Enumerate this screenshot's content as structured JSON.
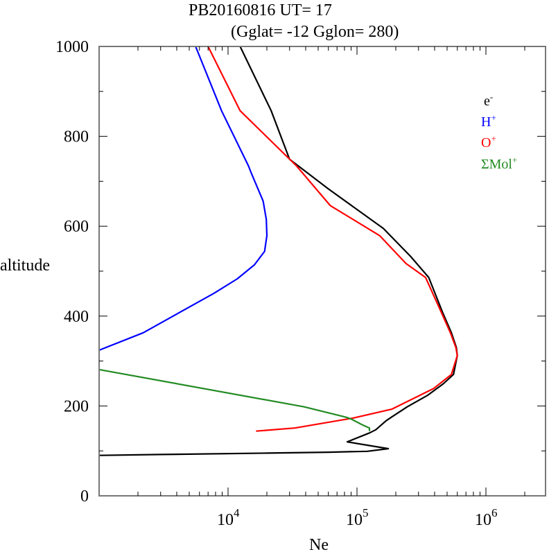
{
  "chart_data": {
    "type": "line",
    "title": "PB20160816   UT=  17",
    "subtitle": "(Gglat= -12   Gglon=  280)",
    "xlabel": "Ne",
    "ylabel": "altitude",
    "xscale": "log",
    "xlim": [
      1000,
      2900000
    ],
    "ylim": [
      0,
      1000
    ],
    "grid": false,
    "legend_placement": "top-right",
    "x_ticks": [
      {
        "value": 10000,
        "base": "10",
        "exp": "4"
      },
      {
        "value": 100000,
        "base": "10",
        "exp": "5"
      },
      {
        "value": 1000000,
        "base": "10",
        "exp": "6"
      }
    ],
    "y_ticks": [
      {
        "value": 0,
        "label": "0"
      },
      {
        "value": 200,
        "label": "200"
      },
      {
        "value": 400,
        "label": "400"
      },
      {
        "value": 600,
        "label": "600"
      },
      {
        "value": 800,
        "label": "800"
      },
      {
        "value": 1000,
        "label": "1000"
      }
    ],
    "series": [
      {
        "name": "e-",
        "legend_base": "e",
        "legend_sup": "-",
        "color": "#000000",
        "points": [
          [
            1000,
            90
          ],
          [
            3000,
            92
          ],
          [
            20000,
            95
          ],
          [
            60000,
            97
          ],
          [
            120000,
            99
          ],
          [
            175000,
            105
          ],
          [
            84000,
            120
          ],
          [
            125000,
            140
          ],
          [
            140000,
            147
          ],
          [
            168000,
            167
          ],
          [
            185000,
            175
          ],
          [
            245000,
            198
          ],
          [
            355000,
            224
          ],
          [
            470000,
            250
          ],
          [
            560000,
            270
          ],
          [
            600000,
            312
          ],
          [
            590000,
            330
          ],
          [
            540000,
            363
          ],
          [
            460000,
            409
          ],
          [
            360000,
            486
          ],
          [
            260000,
            533
          ],
          [
            160000,
            595
          ],
          [
            60000,
            683
          ],
          [
            30000,
            749
          ],
          [
            21600,
            857
          ],
          [
            12400,
            1000
          ]
        ]
      },
      {
        "name": "H+",
        "legend_base": "H",
        "legend_sup": "+",
        "color": "#0000ff",
        "points": [
          [
            1000,
            324
          ],
          [
            2200,
            363
          ],
          [
            7800,
            451
          ],
          [
            11800,
            483
          ],
          [
            16000,
            514
          ],
          [
            19200,
            544
          ],
          [
            20000,
            579
          ],
          [
            19800,
            615
          ],
          [
            18700,
            656
          ],
          [
            15100,
            719
          ],
          [
            14400,
            734
          ],
          [
            8900,
            857
          ],
          [
            5600,
            1000
          ]
        ]
      },
      {
        "name": "O+",
        "legend_base": "O",
        "legend_sup": "+",
        "color": "#ff0000",
        "points": [
          [
            16500,
            144
          ],
          [
            33000,
            151
          ],
          [
            93000,
            173
          ],
          [
            187000,
            193
          ],
          [
            394000,
            239
          ],
          [
            540000,
            270
          ],
          [
            600000,
            312
          ],
          [
            585000,
            330
          ],
          [
            530000,
            363
          ],
          [
            450000,
            409
          ],
          [
            340000,
            486
          ],
          [
            240000,
            517
          ],
          [
            150000,
            579
          ],
          [
            62000,
            646
          ],
          [
            34000,
            734
          ],
          [
            12400,
            857
          ],
          [
            7000,
            1000
          ]
        ]
      },
      {
        "name": "ΣMol+",
        "legend_base": "ΣMol",
        "legend_sup": "+",
        "color": "#228b22",
        "points": [
          [
            125000,
            144
          ],
          [
            125000,
            151
          ],
          [
            110000,
            158
          ],
          [
            90000,
            171
          ],
          [
            82000,
            175
          ],
          [
            39000,
            198
          ],
          [
            1000,
            281
          ]
        ]
      }
    ]
  }
}
